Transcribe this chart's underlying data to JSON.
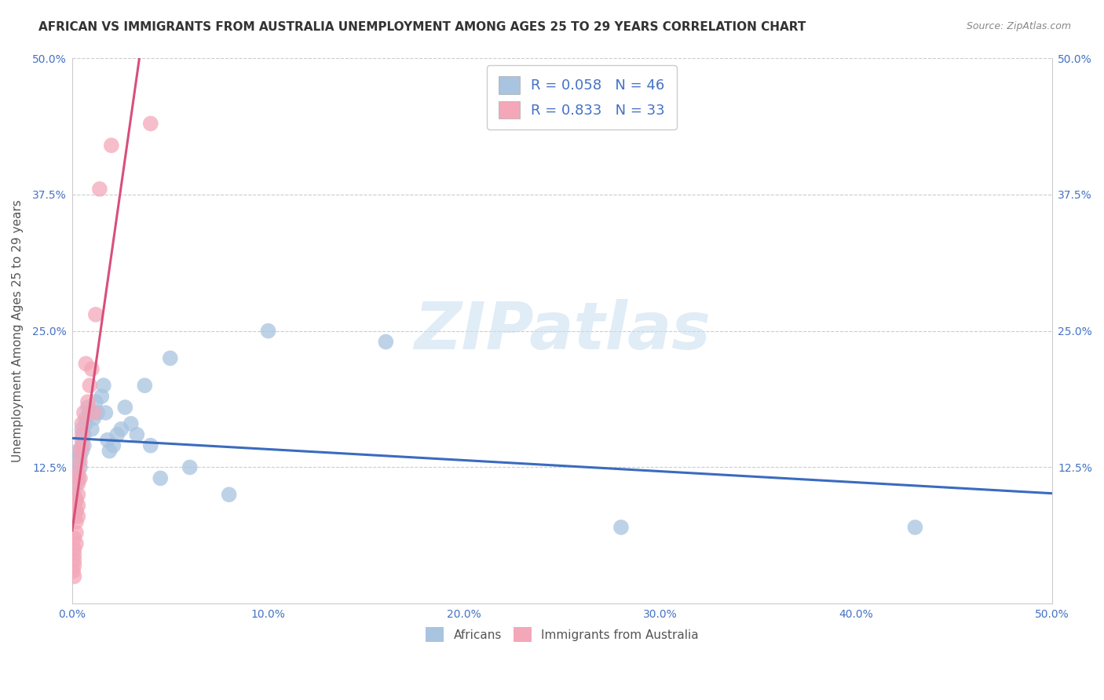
{
  "title": "AFRICAN VS IMMIGRANTS FROM AUSTRALIA UNEMPLOYMENT AMONG AGES 25 TO 29 YEARS CORRELATION CHART",
  "source": "Source: ZipAtlas.com",
  "ylabel": "Unemployment Among Ages 25 to 29 years",
  "xlim": [
    0.0,
    0.5
  ],
  "ylim": [
    0.0,
    0.5
  ],
  "xticks": [
    0.0,
    0.1,
    0.2,
    0.3,
    0.4,
    0.5
  ],
  "yticks": [
    0.0,
    0.125,
    0.25,
    0.375,
    0.5
  ],
  "xticklabels": [
    "0.0%",
    "10.0%",
    "20.0%",
    "30.0%",
    "40.0%",
    "50.0%"
  ],
  "yticklabels": [
    "",
    "12.5%",
    "25.0%",
    "37.5%",
    "50.0%"
  ],
  "africans_R": 0.058,
  "africans_N": 46,
  "australia_R": 0.833,
  "australia_N": 33,
  "africans_color": "#a8c4e0",
  "australia_color": "#f4a7b9",
  "africans_line_color": "#3a6bbf",
  "australia_line_color": "#d94f7a",
  "watermark_text": "ZIPatlas",
  "africans_x": [
    0.001,
    0.001,
    0.001,
    0.002,
    0.002,
    0.002,
    0.002,
    0.003,
    0.003,
    0.003,
    0.004,
    0.004,
    0.005,
    0.005,
    0.005,
    0.006,
    0.006,
    0.007,
    0.007,
    0.008,
    0.009,
    0.01,
    0.011,
    0.012,
    0.013,
    0.015,
    0.016,
    0.017,
    0.018,
    0.019,
    0.021,
    0.023,
    0.025,
    0.027,
    0.03,
    0.033,
    0.037,
    0.04,
    0.045,
    0.05,
    0.06,
    0.08,
    0.1,
    0.16,
    0.28,
    0.43
  ],
  "africans_y": [
    0.1,
    0.09,
    0.08,
    0.12,
    0.11,
    0.095,
    0.085,
    0.13,
    0.14,
    0.115,
    0.125,
    0.135,
    0.15,
    0.14,
    0.16,
    0.155,
    0.145,
    0.17,
    0.165,
    0.18,
    0.175,
    0.16,
    0.17,
    0.185,
    0.175,
    0.19,
    0.2,
    0.175,
    0.15,
    0.14,
    0.145,
    0.155,
    0.16,
    0.18,
    0.165,
    0.155,
    0.2,
    0.145,
    0.115,
    0.225,
    0.125,
    0.1,
    0.25,
    0.24,
    0.07,
    0.07
  ],
  "australia_x": [
    0.0005,
    0.001,
    0.001,
    0.001,
    0.001,
    0.001,
    0.001,
    0.002,
    0.002,
    0.002,
    0.002,
    0.002,
    0.003,
    0.003,
    0.003,
    0.003,
    0.003,
    0.004,
    0.004,
    0.004,
    0.005,
    0.005,
    0.005,
    0.006,
    0.007,
    0.008,
    0.009,
    0.01,
    0.011,
    0.012,
    0.014,
    0.02,
    0.04
  ],
  "australia_y": [
    0.03,
    0.025,
    0.05,
    0.06,
    0.04,
    0.035,
    0.045,
    0.085,
    0.095,
    0.075,
    0.065,
    0.055,
    0.1,
    0.11,
    0.12,
    0.09,
    0.08,
    0.13,
    0.14,
    0.115,
    0.155,
    0.165,
    0.145,
    0.175,
    0.22,
    0.185,
    0.2,
    0.215,
    0.175,
    0.265,
    0.38,
    0.42,
    0.44
  ]
}
